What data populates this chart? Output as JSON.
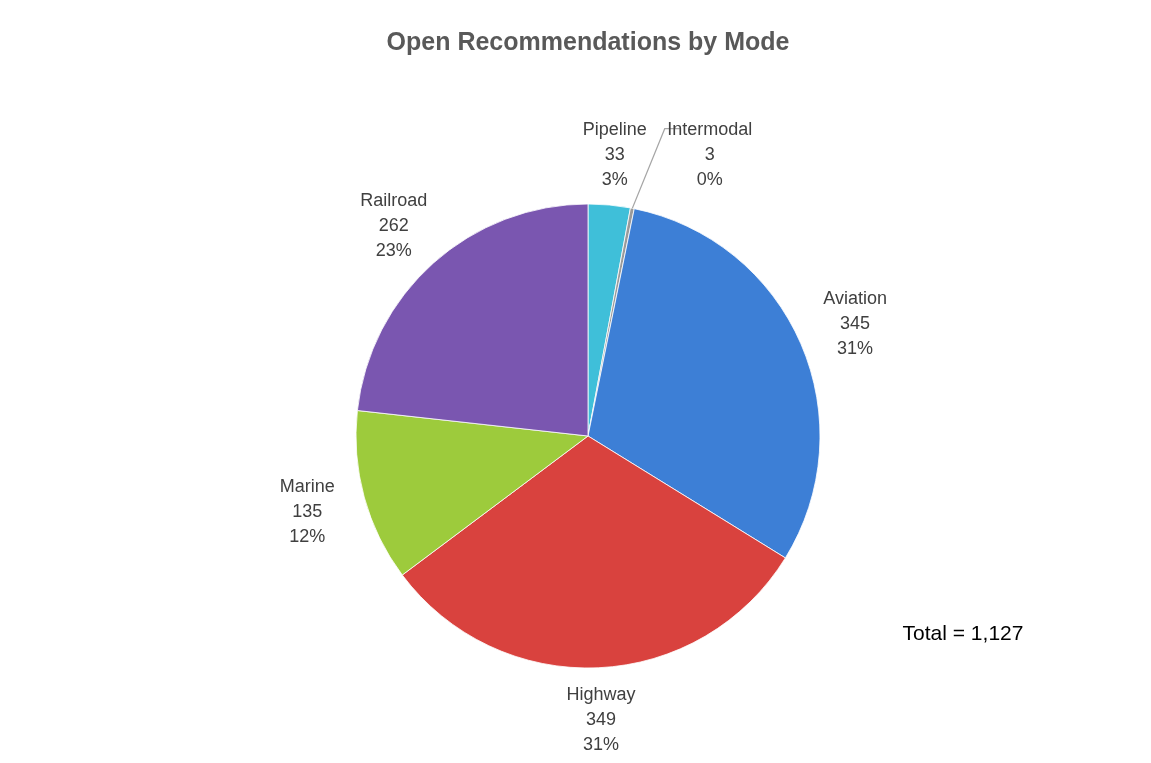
{
  "chart_data": {
    "type": "pie",
    "title": "Open Recommendations by Mode",
    "categories": [
      "Pipeline",
      "Intermodal",
      "Aviation",
      "Highway",
      "Marine",
      "Railroad"
    ],
    "values": [
      33,
      3,
      345,
      349,
      135,
      262
    ],
    "colors": [
      "#3fbfd9",
      "#9a9a9a",
      "#3d7fd6",
      "#d9423e",
      "#9dcb3c",
      "#7a56b0"
    ],
    "value_labels": [
      "33\n3%",
      "3\n0%",
      "345\n31%",
      "349\n31%",
      "135\n12%",
      "262\n23%"
    ],
    "annotations": [
      {
        "text": "Total = 1,127"
      }
    ]
  }
}
